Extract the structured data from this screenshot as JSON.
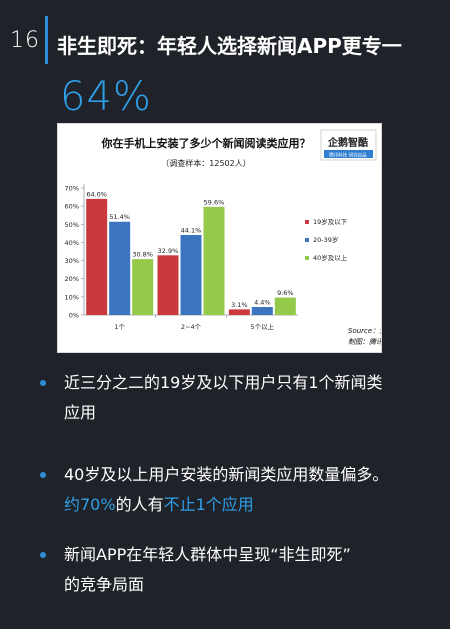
{
  "page_number": "16",
  "headline": "非生即死：年轻人选择新闻APP更专一",
  "big_stat": "64%",
  "colors": {
    "background": "#1f2228",
    "accent_blue": "#2f9fe8",
    "series_red": "#c9393e",
    "series_blue": "#3d74c1",
    "series_green": "#94c94a"
  },
  "logo": {
    "text_main": "企鹅智酷",
    "text_sub": "腾讯科技 研究出品"
  },
  "chart_data": {
    "type": "bar",
    "title": "你在手机上安装了多少个新闻阅读类应用？",
    "subtitle": "（调查样本：12502人）",
    "categories": [
      "1个",
      "2~4个",
      "5个以上"
    ],
    "series": [
      {
        "name": "19岁及以下",
        "values": [
          64.0,
          32.9,
          3.1
        ],
        "labels": [
          "64.0%",
          "32.9%",
          "3.1%"
        ]
      },
      {
        "name": "20-39岁",
        "values": [
          51.4,
          44.1,
          4.4
        ],
        "labels": [
          "51.4%",
          "44.1%",
          "4.4%"
        ]
      },
      {
        "name": "40岁及以上",
        "values": [
          30.8,
          59.6,
          9.6
        ],
        "labels": [
          "30.8%",
          "59.6%",
          "9.6%"
        ]
      }
    ],
    "y_ticks": [
      "0%",
      "10%",
      "20%",
      "30%",
      "40%",
      "50%",
      "60%",
      "70%"
    ],
    "ylim": [
      0,
      70
    ],
    "legend_position": "right",
    "source": "Source：企鹅智酷调查",
    "credit": "制图：腾讯科技"
  },
  "bullets": [
    {
      "lines": [
        [
          {
            "t": "近三分之二的19岁及以下用户只有1个新闻类"
          }
        ],
        [
          {
            "t": "应用"
          }
        ]
      ]
    },
    {
      "lines": [
        [
          {
            "t": "40岁及以上用户安装的新闻类应用数量偏多。"
          }
        ],
        [
          {
            "t": "约70%",
            "hl": true
          },
          {
            "t": "的人有"
          },
          {
            "t": "不止1个应用",
            "hl": true
          }
        ]
      ]
    },
    {
      "lines": [
        [
          {
            "t": "新闻APP在年轻人群体中呈现“非生即死”"
          }
        ],
        [
          {
            "t": "的竞争局面"
          }
        ]
      ]
    }
  ]
}
